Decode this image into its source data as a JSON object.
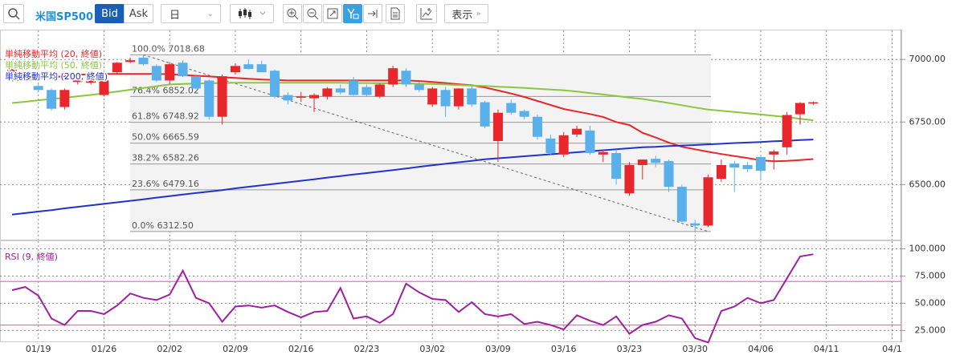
{
  "toolbar": {
    "symbol": "米国SP500",
    "bid": "Bid",
    "ask": "Ask",
    "period": "日",
    "display": "表示"
  },
  "chart_data": [
    {
      "type": "candlestick",
      "categories": [
        null,
        null,
        "01/19",
        null,
        null,
        null,
        null,
        "01/26",
        null,
        null,
        null,
        null,
        "02/02",
        null,
        null,
        null,
        null,
        "02/09",
        null,
        null,
        null,
        null,
        "02/16",
        null,
        null,
        null,
        null,
        "02/23",
        null,
        null,
        null,
        null,
        "03/02",
        null,
        null,
        null,
        null,
        "03/09",
        null,
        null,
        null,
        null,
        "03/16",
        null,
        null,
        null,
        null,
        "03/23",
        null,
        null,
        null,
        null,
        "03/30",
        null,
        null,
        null,
        null,
        "04/06",
        null,
        null,
        null,
        null,
        "04/11",
        null,
        null,
        null,
        null,
        "04/1"
      ],
      "open": [
        6930,
        6950,
        6894,
        6878,
        6810,
        6910,
        6907,
        6858,
        6949,
        6990,
        7007,
        6974,
        6916,
        6987,
        6933,
        6916,
        6771,
        6949,
        6981,
        6981,
        6955,
        6858,
        6848,
        6845,
        6852,
        6884,
        6916,
        6890,
        6852,
        6900,
        6955,
        6900,
        6820,
        6878,
        6813,
        6884,
        6829,
        6674,
        6826,
        6794,
        6771,
        6684,
        6620,
        6700,
        6716,
        6620,
        6626,
        6465,
        6578,
        6603,
        6594,
        6491,
        6345,
        6336,
        6523,
        6584,
        6578,
        6610,
        6620,
        6649,
        6781,
        6826,
        null,
        null,
        null,
        null,
        null,
        null
      ],
      "high": [
        6970,
        6955,
        6900,
        6884,
        6884,
        6930,
        6949,
        6930,
        6990,
        7007,
        7018.68,
        6981,
        6990,
        6997,
        6940,
        6920,
        6940,
        6985,
        7000,
        6995,
        6960,
        6870,
        6870,
        6865,
        6890,
        6900,
        6930,
        6900,
        6905,
        6975,
        6965,
        6910,
        6890,
        6890,
        6885,
        6895,
        6835,
        6800,
        6840,
        6800,
        6780,
        6700,
        6710,
        6735,
        6735,
        6640,
        6640,
        6590,
        6600,
        6615,
        6600,
        6500,
        6360,
        6540,
        6600,
        6595,
        6590,
        6620,
        6640,
        6790,
        6830,
        6832,
        null,
        null,
        null,
        null,
        null,
        null
      ],
      "low": [
        6920,
        6920,
        6870,
        6795,
        6800,
        6900,
        6900,
        6852,
        6940,
        6985,
        6975,
        6910,
        6900,
        6930,
        6880,
        6760,
        6740,
        6940,
        6960,
        6950,
        6845,
        6820,
        6830,
        6790,
        6840,
        6860,
        6855,
        6850,
        6845,
        6890,
        6890,
        6870,
        6810,
        6770,
        6800,
        6810,
        6725,
        6590,
        6780,
        6760,
        6680,
        6620,
        6610,
        6690,
        6620,
        6590,
        6500,
        6455,
        6520,
        6570,
        6470,
        6350,
        6312.5,
        6330,
        6510,
        6470,
        6550,
        6520,
        6560,
        6620,
        6740,
        6818,
        null,
        null,
        null,
        null,
        null,
        null
      ],
      "close": [
        6960,
        6925,
        6878,
        6803,
        6878,
        6916,
        6940,
        6916,
        6987,
        6997,
        6981,
        6916,
        6981,
        6933,
        6884,
        6771,
        6933,
        6974,
        6962,
        6949,
        6852,
        6836,
        6852,
        6858,
        6884,
        6868,
        6858,
        6858,
        6900,
        6965,
        6900,
        6878,
        6884,
        6813,
        6884,
        6820,
        6732,
        6787,
        6787,
        6771,
        6691,
        6626,
        6697,
        6723,
        6626,
        6630,
        6523,
        6578,
        6600,
        6587,
        6491,
        6352,
        6336,
        6529,
        6578,
        6568,
        6562,
        6555,
        6632,
        6778,
        6826,
        6829,
        null,
        null,
        null,
        null,
        null,
        null
      ],
      "up_color": "#e8262b",
      "down_color": "#5ab0ea",
      "series": [
        {
          "name": "単純移動平均 (20, 終値)",
          "color": "#e8262b",
          "values": [
            6916,
            6920,
            6925,
            6929,
            6933,
            6938,
            6942,
            6942,
            6942,
            6942,
            6942,
            6942,
            6941,
            6938,
            6935,
            6932,
            6929,
            6926,
            6923,
            6920,
            6918,
            6916,
            6916,
            6916,
            6916,
            6916,
            6916,
            6916,
            6916,
            6916,
            6916,
            6914,
            6910,
            6906,
            6901,
            6897,
            6888,
            6876,
            6864,
            6850,
            6834,
            6818,
            6802,
            6792,
            6782,
            6770,
            6750,
            6738,
            6707,
            6688,
            6668,
            6651,
            6641,
            6631,
            6622,
            6614,
            6606,
            6597,
            6593,
            6595,
            6598,
            6602,
            null,
            null,
            null,
            null,
            null,
            null
          ]
        },
        {
          "name": "単純移動平均 (50, 終値)",
          "color": "#8cc63f",
          "values": [
            6826,
            6831,
            6837,
            6842,
            6847,
            6853,
            6858,
            6865,
            6872,
            6879,
            6886,
            6893,
            6900,
            6902,
            6904,
            6905,
            6906,
            6907,
            6907,
            6907,
            6907,
            6907,
            6907,
            6907,
            6907,
            6907,
            6906,
            6906,
            6905,
            6905,
            6904,
            6903,
            6902,
            6900,
            6898,
            6896,
            6894,
            6891,
            6889,
            6886,
            6883,
            6880,
            6877,
            6872,
            6866,
            6860,
            6854,
            6848,
            6842,
            6834,
            6826,
            6817,
            6808,
            6800,
            6795,
            6790,
            6785,
            6780,
            6775,
            6769,
            6763,
            6757,
            null,
            null,
            null,
            null,
            null,
            null
          ]
        },
        {
          "name": "単純移動平均 (200, 終値)",
          "color": "#2233cc",
          "values": [
            6380,
            6386,
            6392,
            6398,
            6405,
            6411,
            6417,
            6423,
            6429,
            6435,
            6441,
            6448,
            6454,
            6460,
            6466,
            6472,
            6478,
            6485,
            6491,
            6497,
            6503,
            6509,
            6515,
            6521,
            6528,
            6534,
            6540,
            6546,
            6552,
            6558,
            6564,
            6571,
            6577,
            6583,
            6589,
            6595,
            6601,
            6605,
            6609,
            6613,
            6617,
            6621,
            6625,
            6629,
            6633,
            6637,
            6641,
            6645,
            6649,
            6651,
            6654,
            6656,
            6658,
            6661,
            6663,
            6666,
            6668,
            6670,
            6673,
            6675,
            6678,
            6680,
            null,
            null,
            null,
            null,
            null,
            null
          ]
        }
      ],
      "fibonacci": [
        {
          "value": 7018.68,
          "label": "100.0% 7018.68"
        },
        {
          "value": 6852.02,
          "label": "76.4% 6852.02"
        },
        {
          "value": 6748.92,
          "label": "61.8% 6748.92"
        },
        {
          "value": 6665.59,
          "label": "50.0% 6665.59"
        },
        {
          "value": 6582.26,
          "label": "38.2% 6582.26"
        },
        {
          "value": 6479.16,
          "label": "23.6% 6479.16"
        },
        {
          "value": 6312.5,
          "label": "0.0% 6312.50"
        }
      ],
      "ylim": [
        6280,
        7116
      ],
      "yticks": [
        {
          "value": 6500,
          "label": "6500.00"
        },
        {
          "value": 6750,
          "label": "6750.00"
        },
        {
          "value": 7000,
          "label": "7000.00"
        }
      ],
      "grid": true
    },
    {
      "type": "line",
      "series": [
        {
          "name": "RSI (9, 終値)",
          "color": "#a020a0",
          "values": [
            62,
            65,
            57,
            36,
            30,
            43,
            43,
            40,
            48,
            59,
            55,
            53,
            58,
            80,
            55,
            50,
            33,
            47,
            48,
            46,
            48,
            42,
            37,
            42,
            43,
            64,
            36,
            38,
            32,
            40,
            68,
            60,
            54,
            53,
            42,
            51,
            40,
            38,
            40,
            31,
            33,
            30,
            26,
            39,
            34,
            30,
            38,
            22,
            30,
            33,
            39,
            36,
            18,
            14,
            43,
            47,
            55,
            50,
            53,
            73,
            93,
            95,
            null,
            null,
            null,
            null,
            null,
            null
          ]
        }
      ],
      "hlines": [
        70,
        30
      ],
      "hline_color": "#ff66cc",
      "ylim": [
        15,
        107
      ],
      "yticks": [
        {
          "value": 25,
          "label": "25.000"
        },
        {
          "value": 50,
          "label": "50.000"
        },
        {
          "value": 75,
          "label": "75.000"
        },
        {
          "value": 100,
          "label": "100.000"
        }
      ],
      "grid": true
    }
  ]
}
